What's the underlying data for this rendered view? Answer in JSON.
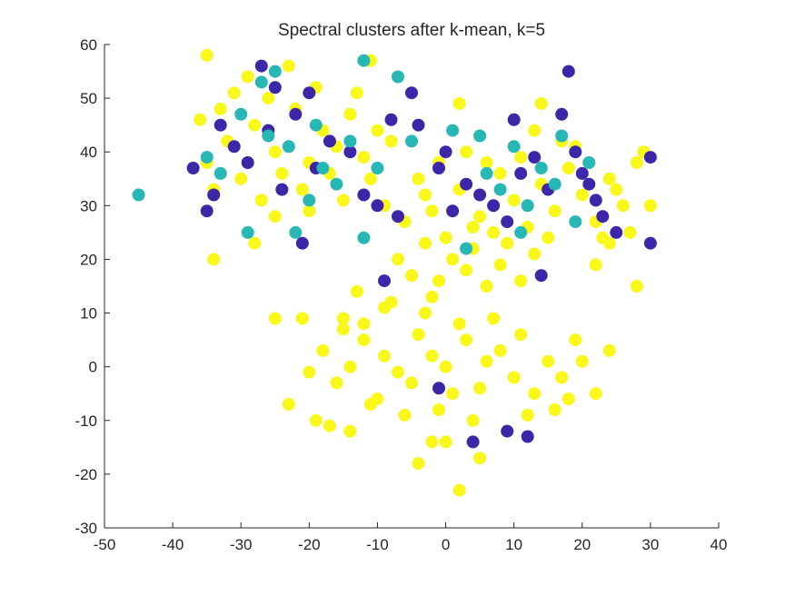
{
  "chart_data": {
    "type": "scatter",
    "title": "Spectral clusters after k-mean, k=5",
    "xlabel": "",
    "ylabel": "",
    "xlim": [
      -50,
      40
    ],
    "ylim": [
      -30,
      60
    ],
    "xticks": [
      "-50",
      "-40",
      "-30",
      "-20",
      "-10",
      "0",
      "10",
      "20",
      "30",
      "40"
    ],
    "yticks": [
      "-30",
      "-20",
      "-10",
      "0",
      "10",
      "20",
      "30",
      "40",
      "50",
      "60"
    ],
    "grid": false,
    "legend": "none",
    "colors": {
      "purple": "#3e26a8",
      "teal": "#27b7b5",
      "yellow": "#f9f81a",
      "axis": "#262626"
    },
    "series": [
      {
        "color": "#f9f81a",
        "points": [
          [
            -2,
            2
          ],
          [
            0,
            0
          ],
          [
            -5,
            -3
          ],
          [
            3,
            5
          ],
          [
            1,
            -5
          ],
          [
            -4,
            6
          ],
          [
            6,
            1
          ],
          [
            -7,
            -1
          ],
          [
            2,
            8
          ],
          [
            -1,
            -8
          ],
          [
            5,
            -4
          ],
          [
            -9,
            2
          ],
          [
            8,
            3
          ],
          [
            -3,
            10
          ],
          [
            4,
            -10
          ],
          [
            -12,
            5
          ],
          [
            10,
            -2
          ],
          [
            -6,
            -9
          ],
          [
            7,
            9
          ],
          [
            -10,
            -6
          ],
          [
            11,
            6
          ],
          [
            -14,
            0
          ],
          [
            13,
            -5
          ],
          [
            -2,
            13
          ],
          [
            0,
            -14
          ],
          [
            -16,
            -3
          ],
          [
            15,
            1
          ],
          [
            -8,
            12
          ],
          [
            9,
            -12
          ],
          [
            -18,
            3
          ],
          [
            17,
            -2
          ],
          [
            -20,
            -1
          ],
          [
            -17,
            -11
          ],
          [
            -23,
            -7
          ],
          [
            -15,
            9
          ],
          [
            -13,
            14
          ],
          [
            16,
            -8
          ],
          [
            19,
            5
          ],
          [
            22,
            -5
          ],
          [
            24,
            3
          ],
          [
            20,
            1
          ],
          [
            18,
            -6
          ],
          [
            2,
            -23
          ],
          [
            -4,
            -18
          ],
          [
            5,
            -17
          ],
          [
            -2,
            -14
          ],
          [
            -19,
            -10
          ],
          [
            -14,
            -12
          ],
          [
            12,
            -9
          ],
          [
            -11,
            -7
          ],
          [
            -1,
            16
          ],
          [
            3,
            18
          ],
          [
            -5,
            17
          ],
          [
            6,
            15
          ],
          [
            1,
            20
          ],
          [
            4,
            22
          ],
          [
            -3,
            23
          ],
          [
            8,
            19
          ],
          [
            11,
            16
          ],
          [
            13,
            21
          ],
          [
            -7,
            20
          ],
          [
            -9,
            11
          ],
          [
            -12,
            8
          ],
          [
            -15,
            7
          ],
          [
            -25,
            9
          ],
          [
            -21,
            9
          ],
          [
            -28,
            45
          ],
          [
            -25,
            40
          ],
          [
            -22,
            48
          ],
          [
            -20,
            38
          ],
          [
            -18,
            44
          ],
          [
            -30,
            35
          ],
          [
            -26,
            50
          ],
          [
            -24,
            36
          ],
          [
            -16,
            41
          ],
          [
            -14,
            47
          ],
          [
            -32,
            42
          ],
          [
            -35,
            38
          ],
          [
            -33,
            48
          ],
          [
            -19,
            52
          ],
          [
            -21,
            33
          ],
          [
            -27,
            31
          ],
          [
            -12,
            39
          ],
          [
            -10,
            44
          ],
          [
            -29,
            54
          ],
          [
            -23,
            56
          ],
          [
            -17,
            36
          ],
          [
            -15,
            31
          ],
          [
            -36,
            46
          ],
          [
            -34,
            33
          ],
          [
            -13,
            51
          ],
          [
            -11,
            35
          ],
          [
            -8,
            42
          ],
          [
            -31,
            51
          ],
          [
            -25,
            28
          ],
          [
            -20,
            29
          ],
          [
            -37,
            37
          ],
          [
            -35,
            58
          ],
          [
            -34,
            20
          ],
          [
            -28,
            23
          ],
          [
            -11,
            57
          ],
          [
            -9,
            30
          ],
          [
            -6,
            27
          ],
          [
            -3,
            32
          ],
          [
            -1,
            38
          ],
          [
            2,
            33
          ],
          [
            5,
            28
          ],
          [
            8,
            36
          ],
          [
            10,
            31
          ],
          [
            12,
            26
          ],
          [
            14,
            34
          ],
          [
            16,
            29
          ],
          [
            18,
            37
          ],
          [
            20,
            32
          ],
          [
            22,
            27
          ],
          [
            24,
            35
          ],
          [
            26,
            30
          ],
          [
            28,
            38
          ],
          [
            30,
            30
          ],
          [
            3,
            40
          ],
          [
            7,
            25
          ],
          [
            11,
            39
          ],
          [
            15,
            24
          ],
          [
            19,
            41
          ],
          [
            23,
            24
          ],
          [
            27,
            25
          ],
          [
            29,
            40
          ],
          [
            -2,
            29
          ],
          [
            6,
            38
          ],
          [
            13,
            44
          ],
          [
            17,
            42
          ],
          [
            21,
            38
          ],
          [
            25,
            33
          ],
          [
            9,
            23
          ],
          [
            4,
            26
          ],
          [
            0,
            24
          ],
          [
            -4,
            35
          ],
          [
            2,
            49
          ],
          [
            14,
            49
          ],
          [
            28,
            15
          ],
          [
            22,
            19
          ],
          [
            24,
            23
          ]
        ]
      },
      {
        "color": "#3e26a8",
        "points": [
          [
            -37,
            37
          ],
          [
            -34,
            32
          ],
          [
            -35,
            29
          ],
          [
            -33,
            45
          ],
          [
            -31,
            41
          ],
          [
            -29,
            38
          ],
          [
            -27,
            56
          ],
          [
            -26,
            44
          ],
          [
            -24,
            33
          ],
          [
            -22,
            47
          ],
          [
            -21,
            23
          ],
          [
            -20,
            51
          ],
          [
            -19,
            37
          ],
          [
            -17,
            42
          ],
          [
            -14,
            40
          ],
          [
            -12,
            32
          ],
          [
            -10,
            30
          ],
          [
            -8,
            46
          ],
          [
            -7,
            28
          ],
          [
            -9,
            16
          ],
          [
            -4,
            45
          ],
          [
            -1,
            37
          ],
          [
            0,
            40
          ],
          [
            1,
            29
          ],
          [
            3,
            34
          ],
          [
            5,
            32
          ],
          [
            7,
            30
          ],
          [
            9,
            27
          ],
          [
            10,
            46
          ],
          [
            11,
            36
          ],
          [
            13,
            39
          ],
          [
            15,
            33
          ],
          [
            17,
            47
          ],
          [
            18,
            55
          ],
          [
            19,
            40
          ],
          [
            20,
            36
          ],
          [
            21,
            34
          ],
          [
            22,
            31
          ],
          [
            23,
            28
          ],
          [
            25,
            25
          ],
          [
            30,
            39
          ],
          [
            30,
            23
          ],
          [
            14,
            17
          ],
          [
            4,
            -14
          ],
          [
            9,
            -12
          ],
          [
            12,
            -13
          ],
          [
            -1,
            -4
          ],
          [
            -5,
            51
          ],
          [
            -25,
            52
          ]
        ]
      },
      {
        "color": "#27b7b5",
        "points": [
          [
            -45,
            32
          ],
          [
            -35,
            39
          ],
          [
            -33,
            36
          ],
          [
            -30,
            47
          ],
          [
            -29,
            25
          ],
          [
            -27,
            53
          ],
          [
            -26,
            43
          ],
          [
            -25,
            55
          ],
          [
            -23,
            41
          ],
          [
            -22,
            25
          ],
          [
            -20,
            31
          ],
          [
            -19,
            45
          ],
          [
            -18,
            37
          ],
          [
            -16,
            34
          ],
          [
            -14,
            42
          ],
          [
            -12,
            24
          ],
          [
            -12,
            57
          ],
          [
            -10,
            37
          ],
          [
            -7,
            54
          ],
          [
            -5,
            42
          ],
          [
            1,
            44
          ],
          [
            3,
            22
          ],
          [
            5,
            43
          ],
          [
            6,
            36
          ],
          [
            8,
            33
          ],
          [
            10,
            41
          ],
          [
            12,
            30
          ],
          [
            14,
            37
          ],
          [
            16,
            34
          ],
          [
            17,
            43
          ],
          [
            19,
            27
          ],
          [
            21,
            38
          ],
          [
            11,
            25
          ]
        ]
      }
    ]
  }
}
